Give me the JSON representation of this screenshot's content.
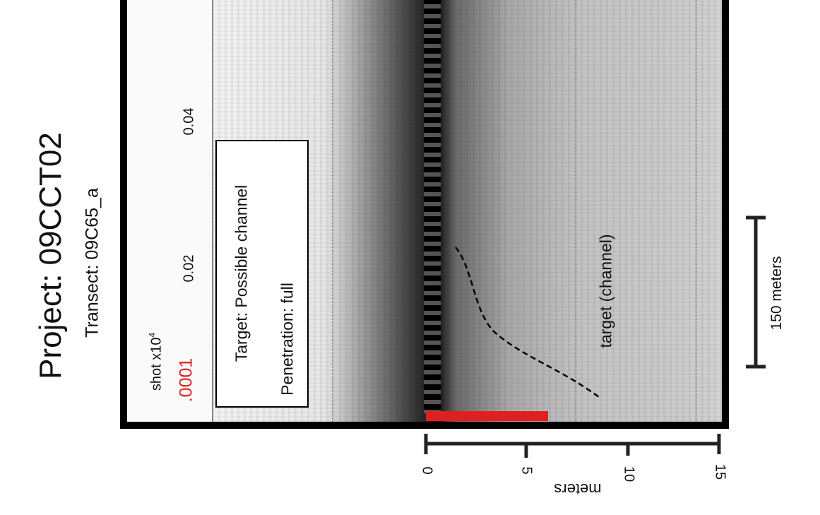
{
  "title": "Project: 09CCT02",
  "subtitle": "Transect: 09C65_a",
  "shot_axis": {
    "label": "shot x10",
    "label_exp": "4",
    "start_label": ".0001",
    "ticks": [
      "0.02",
      "0.04"
    ],
    "start_color": "#e02020"
  },
  "info_box": {
    "target": "Target: Possible channel",
    "penetration": "Penetration: full"
  },
  "annotation": "target (channel)",
  "horizontal_scale": {
    "label": "150 meters"
  },
  "depth_scale": {
    "label": "meters",
    "ticks": [
      "0",
      "5",
      "10",
      "15"
    ]
  },
  "penetration_bar": {
    "color": "#e02020",
    "depth_m": 6
  }
}
